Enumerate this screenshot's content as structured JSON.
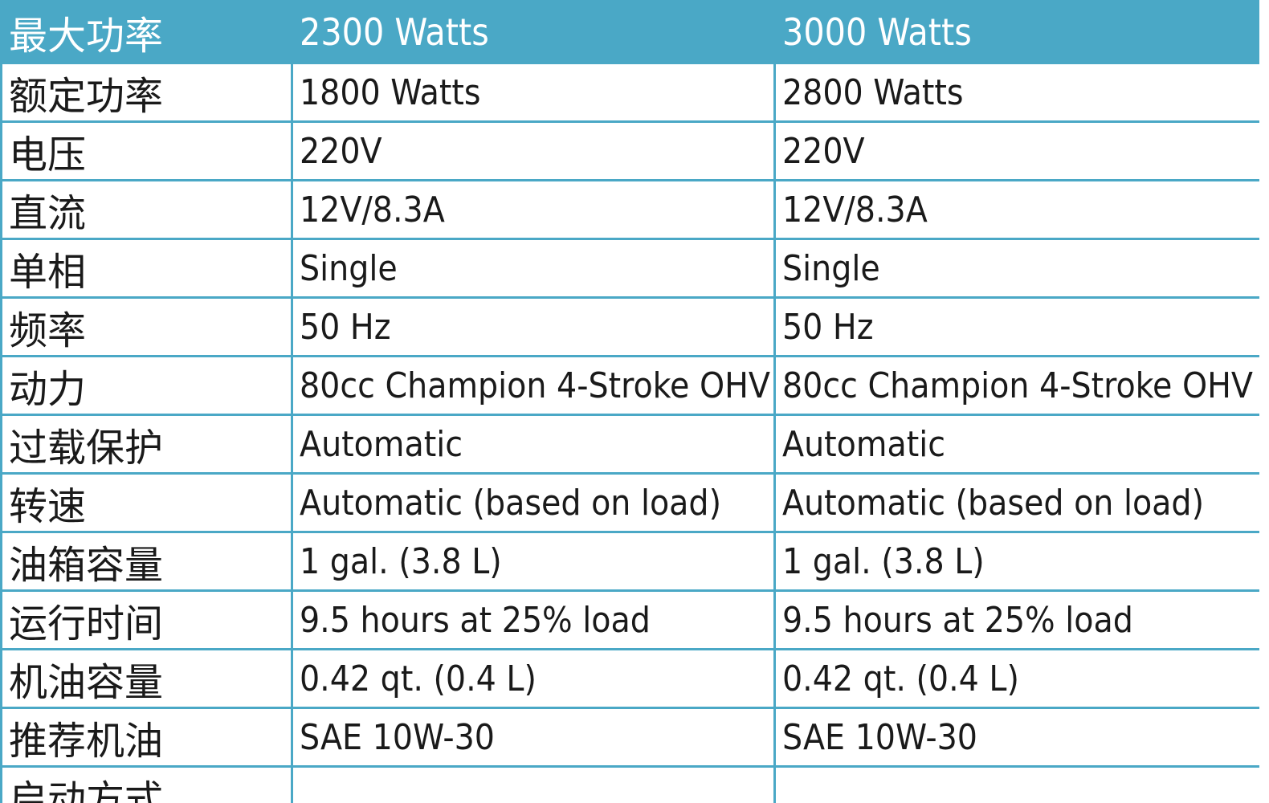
{
  "table": {
    "header": [
      "最大功率",
      "2300 Watts",
      "3000 Watts"
    ],
    "rows": [
      [
        "额定功率",
        "1800 Watts",
        "2800 Watts"
      ],
      [
        "电压",
        "220V",
        "220V"
      ],
      [
        "直流",
        "12V/8.3A",
        "12V/8.3A"
      ],
      [
        "单相",
        "Single",
        "Single"
      ],
      [
        "频率",
        "50 Hz",
        "50 Hz"
      ],
      [
        "动力",
        "80cc Champion 4-Stroke OHV",
        "80cc Champion 4-Stroke OHV"
      ],
      [
        "过载保护",
        "Automatic",
        "Automatic"
      ],
      [
        "转速",
        "Automatic (based on load)",
        "Automatic (based on load)"
      ],
      [
        "油箱容量",
        "1 gal. (3.8 L)",
        "1 gal. (3.8 L)"
      ],
      [
        "运行时间",
        "9.5 hours at 25% load",
        "9.5 hours at 25% load"
      ],
      [
        "机油容量",
        "0.42 qt. (0.4 L)",
        "0.42 qt. (0.4 L)"
      ],
      [
        "推荐机油",
        "SAE 10W-30",
        "SAE 10W-30"
      ],
      [
        "启动方式",
        "",
        ""
      ]
    ]
  },
  "colors": {
    "header_bg": "#4aa8c6",
    "border": "#4aa8c6",
    "header_text": "#ffffff",
    "body_text": "#1a1a1a"
  }
}
